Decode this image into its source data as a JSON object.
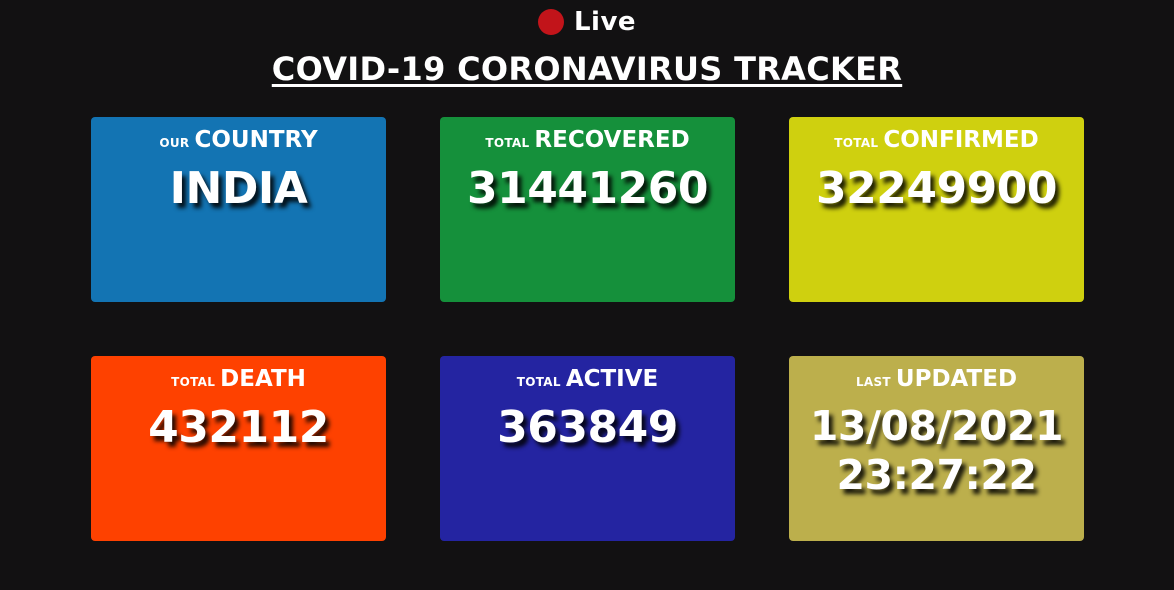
{
  "header": {
    "live_label": "Live",
    "title": "COVID-19 CORONAVIRUS TRACKER"
  },
  "colors": {
    "background": "#121112",
    "live_dot": "#c2141a",
    "country": "#1374b3",
    "recovered": "#15903b",
    "confirmed": "#cfd00f",
    "death": "#fe4100",
    "active": "#2424a1",
    "updated": "#bcaf4c"
  },
  "cards": {
    "country": {
      "prefix": "our",
      "label": "COUNTRY",
      "value": "INDIA"
    },
    "recovered": {
      "prefix": "total",
      "label": "RECOVERED",
      "value": "31441260"
    },
    "confirmed": {
      "prefix": "total",
      "label": "CONFIRMED",
      "value": "32249900"
    },
    "death": {
      "prefix": "total",
      "label": "DEATH",
      "value": "432112"
    },
    "active": {
      "prefix": "total",
      "label": "ACTIVE",
      "value": "363849"
    },
    "updated": {
      "prefix": "last",
      "label": "UPDATED",
      "date": "13/08/2021",
      "time": "23:27:22"
    }
  }
}
